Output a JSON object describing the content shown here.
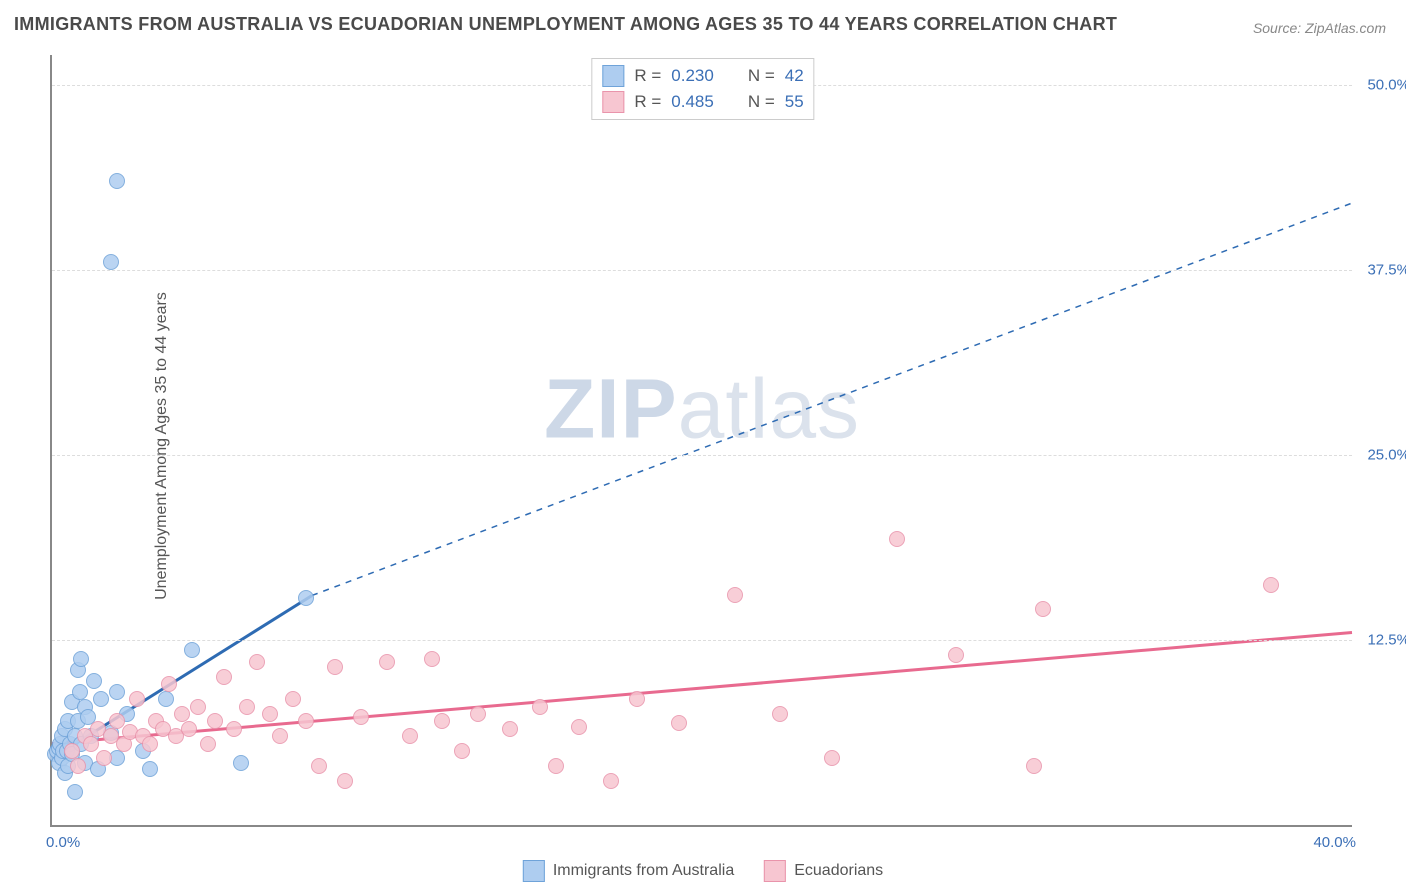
{
  "title": "IMMIGRANTS FROM AUSTRALIA VS ECUADORIAN UNEMPLOYMENT AMONG AGES 35 TO 44 YEARS CORRELATION CHART",
  "source": "Source: ZipAtlas.com",
  "ylabel": "Unemployment Among Ages 35 to 44 years",
  "watermark_zip": "ZIP",
  "watermark_atlas": "atlas",
  "chart": {
    "type": "scatter",
    "xlim": [
      0,
      40
    ],
    "ylim": [
      0,
      52
    ],
    "x_ticks": [
      "0.0%",
      "40.0%"
    ],
    "y_ticks": [
      {
        "v": 12.5,
        "label": "12.5%"
      },
      {
        "v": 25.0,
        "label": "25.0%"
      },
      {
        "v": 37.5,
        "label": "37.5%"
      },
      {
        "v": 50.0,
        "label": "50.0%"
      }
    ],
    "grid_color": "#dddddd",
    "axis_color": "#888888",
    "background_color": "#ffffff",
    "marker_radius": 8,
    "marker_border_width": 1.5,
    "series": [
      {
        "name": "Immigrants from Australia",
        "color_fill": "#aecdf0",
        "color_stroke": "#6fa3d9",
        "R": "0.230",
        "N": "42",
        "trend": {
          "solid_from": [
            0,
            4.5
          ],
          "solid_to": [
            8,
            15.5
          ],
          "dash_to": [
            40,
            42
          ],
          "solid_width": 3,
          "dash_pattern": "6 6",
          "color": "#2e6bb3"
        },
        "points": [
          [
            0.1,
            4.8
          ],
          [
            0.15,
            5.0
          ],
          [
            0.2,
            5.2
          ],
          [
            0.2,
            4.2
          ],
          [
            0.25,
            5.5
          ],
          [
            0.3,
            4.5
          ],
          [
            0.3,
            6.0
          ],
          [
            0.35,
            5.0
          ],
          [
            0.4,
            3.5
          ],
          [
            0.4,
            6.5
          ],
          [
            0.45,
            5.0
          ],
          [
            0.5,
            7.0
          ],
          [
            0.5,
            4.0
          ],
          [
            0.55,
            5.5
          ],
          [
            0.6,
            8.3
          ],
          [
            0.6,
            4.8
          ],
          [
            0.7,
            6.0
          ],
          [
            0.7,
            2.2
          ],
          [
            0.8,
            10.5
          ],
          [
            0.8,
            7.0
          ],
          [
            0.85,
            9.0
          ],
          [
            0.9,
            11.2
          ],
          [
            0.9,
            5.5
          ],
          [
            1.0,
            4.2
          ],
          [
            1.0,
            8.0
          ],
          [
            1.1,
            7.3
          ],
          [
            1.2,
            6.0
          ],
          [
            1.3,
            9.7
          ],
          [
            1.4,
            3.8
          ],
          [
            1.5,
            8.5
          ],
          [
            1.8,
            6.2
          ],
          [
            2.0,
            9.0
          ],
          [
            2.0,
            4.5
          ],
          [
            2.3,
            7.5
          ],
          [
            2.8,
            5.0
          ],
          [
            3.0,
            3.8
          ],
          [
            3.5,
            8.5
          ],
          [
            4.3,
            11.8
          ],
          [
            5.8,
            4.2
          ],
          [
            7.8,
            15.3
          ],
          [
            2.0,
            43.5
          ],
          [
            1.8,
            38.0
          ]
        ]
      },
      {
        "name": "Ecuadorians",
        "color_fill": "#f7c6d1",
        "color_stroke": "#e994ab",
        "R": "0.485",
        "N": "55",
        "trend": {
          "solid_from": [
            0,
            5.5
          ],
          "solid_to": [
            40,
            13.0
          ],
          "solid_width": 3,
          "color": "#e86a8f"
        },
        "points": [
          [
            0.6,
            5.0
          ],
          [
            0.8,
            4.0
          ],
          [
            1.0,
            6.0
          ],
          [
            1.2,
            5.5
          ],
          [
            1.4,
            6.5
          ],
          [
            1.6,
            4.5
          ],
          [
            1.8,
            6.0
          ],
          [
            2.0,
            7.0
          ],
          [
            2.2,
            5.5
          ],
          [
            2.4,
            6.3
          ],
          [
            2.6,
            8.5
          ],
          [
            2.8,
            6.0
          ],
          [
            3.0,
            5.5
          ],
          [
            3.2,
            7.0
          ],
          [
            3.4,
            6.5
          ],
          [
            3.6,
            9.5
          ],
          [
            3.8,
            6.0
          ],
          [
            4.0,
            7.5
          ],
          [
            4.2,
            6.5
          ],
          [
            4.5,
            8.0
          ],
          [
            4.8,
            5.5
          ],
          [
            5.0,
            7.0
          ],
          [
            5.3,
            10.0
          ],
          [
            5.6,
            6.5
          ],
          [
            6.0,
            8.0
          ],
          [
            6.3,
            11.0
          ],
          [
            6.7,
            7.5
          ],
          [
            7.0,
            6.0
          ],
          [
            7.4,
            8.5
          ],
          [
            7.8,
            7.0
          ],
          [
            8.2,
            4.0
          ],
          [
            8.7,
            10.7
          ],
          [
            9.0,
            3.0
          ],
          [
            9.5,
            7.3
          ],
          [
            10.3,
            11.0
          ],
          [
            11.0,
            6.0
          ],
          [
            11.7,
            11.2
          ],
          [
            12.0,
            7.0
          ],
          [
            12.6,
            5.0
          ],
          [
            13.1,
            7.5
          ],
          [
            14.1,
            6.5
          ],
          [
            15.0,
            8.0
          ],
          [
            15.5,
            4.0
          ],
          [
            16.2,
            6.6
          ],
          [
            17.2,
            3.0
          ],
          [
            18.0,
            8.5
          ],
          [
            19.3,
            6.9
          ],
          [
            21.0,
            15.5
          ],
          [
            22.4,
            7.5
          ],
          [
            24.0,
            4.5
          ],
          [
            26.0,
            19.3
          ],
          [
            27.8,
            11.5
          ],
          [
            30.5,
            14.6
          ],
          [
            30.2,
            4.0
          ],
          [
            37.5,
            16.2
          ]
        ]
      }
    ]
  },
  "legend_top": [
    {
      "swatch_fill": "#aecdf0",
      "swatch_stroke": "#6fa3d9",
      "r_label": "R =",
      "r_val": "0.230",
      "n_label": "N =",
      "n_val": "42"
    },
    {
      "swatch_fill": "#f7c6d1",
      "swatch_stroke": "#e994ab",
      "r_label": "R =",
      "r_val": "0.485",
      "n_label": "N =",
      "n_val": "55"
    }
  ],
  "legend_bottom": [
    {
      "swatch_fill": "#aecdf0",
      "swatch_stroke": "#6fa3d9",
      "label": "Immigrants from Australia"
    },
    {
      "swatch_fill": "#f7c6d1",
      "swatch_stroke": "#e994ab",
      "label": "Ecuadorians"
    }
  ]
}
